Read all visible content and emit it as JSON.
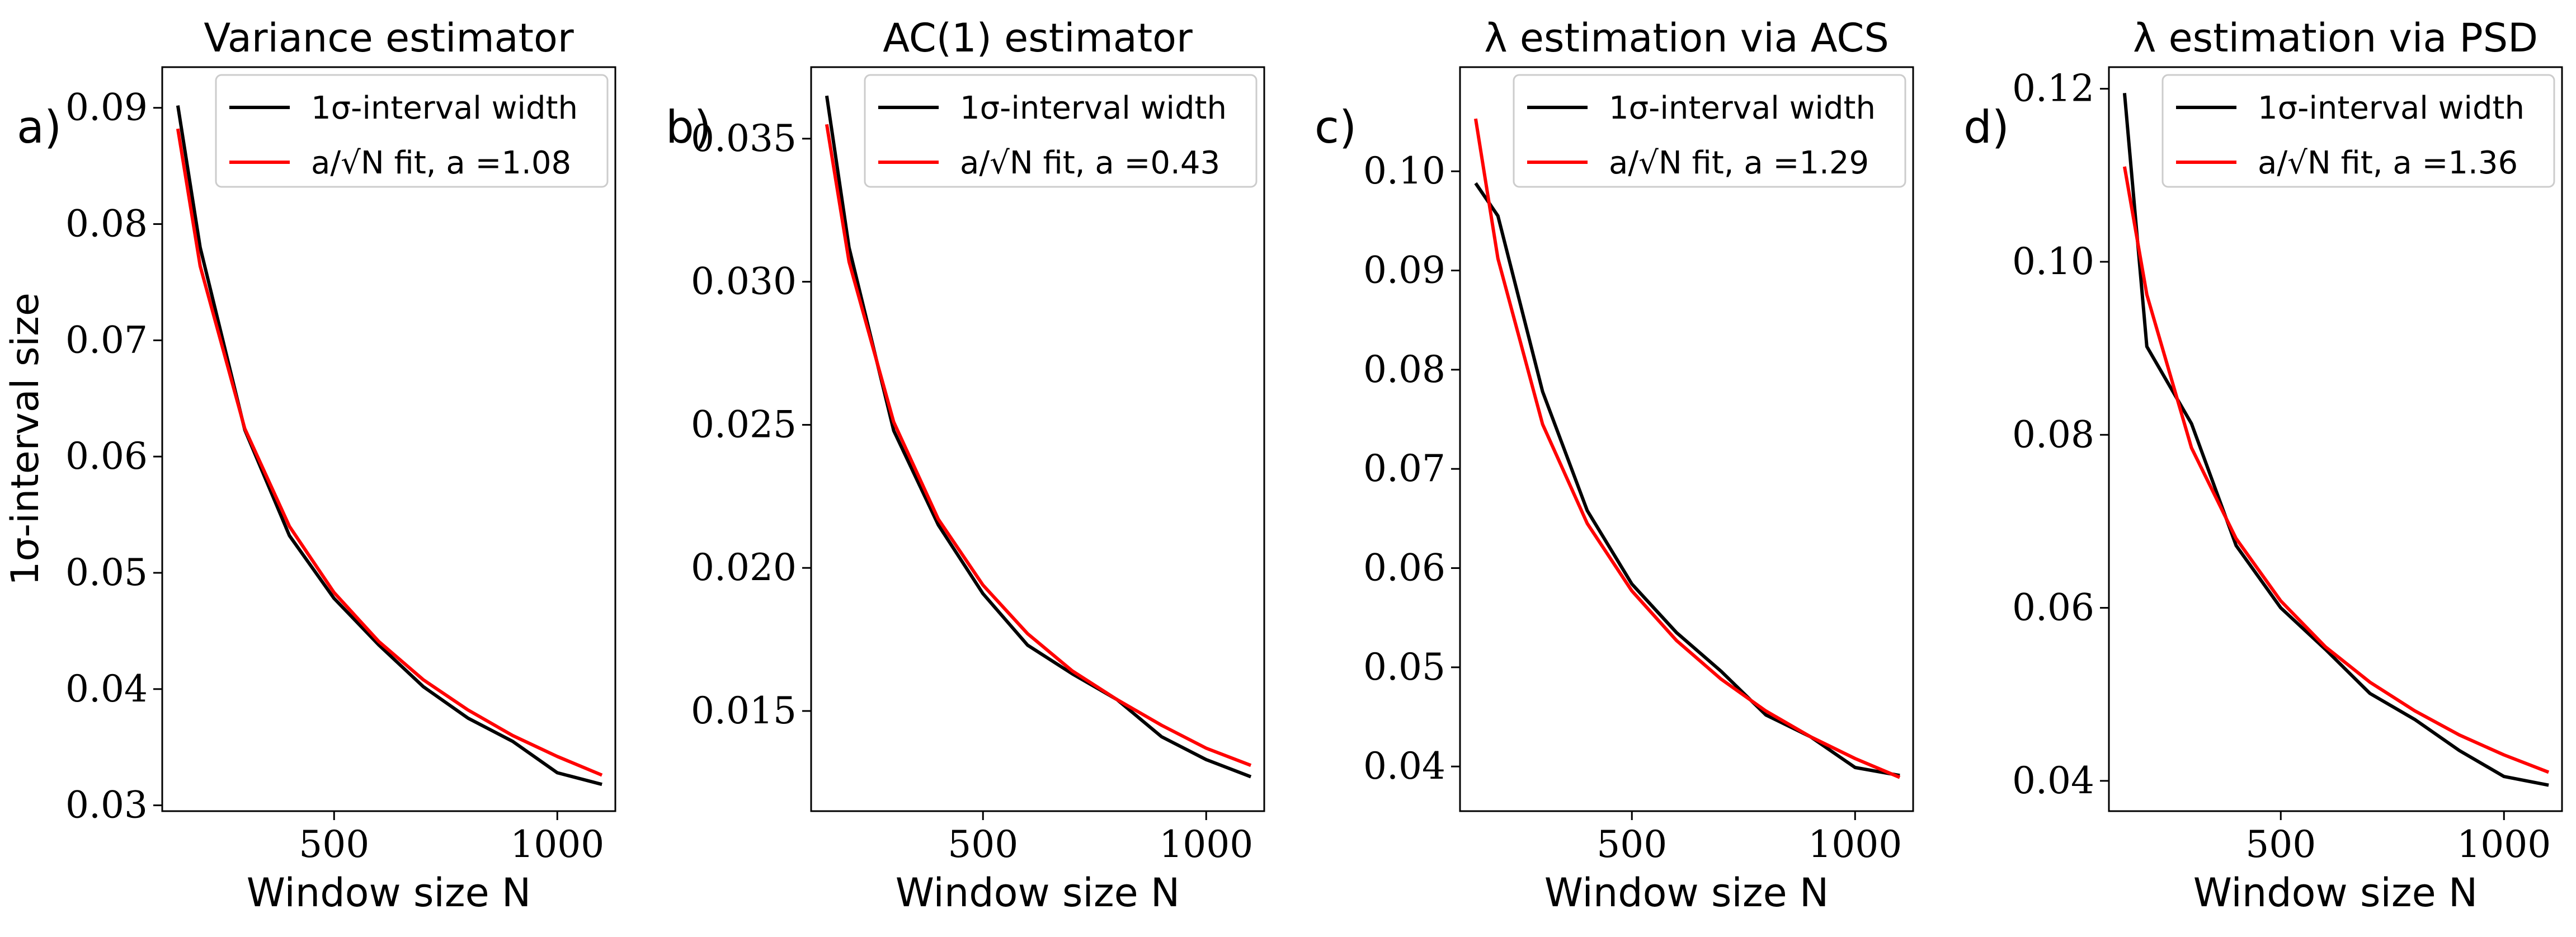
{
  "ylabel_shared": "1σ-interval size",
  "panels": [
    {
      "letter": "a)",
      "title": "Variance estimator"
    },
    {
      "letter": "b)",
      "title": "AC(1) estimator"
    },
    {
      "letter": "c)",
      "title": "λ estimation via ACS"
    },
    {
      "letter": "d)",
      "title": "λ estimation via PSD"
    }
  ],
  "colors": {
    "width_series": "#000000",
    "fit_series": "#ff0000",
    "axes": "#000000",
    "background": "#ffffff"
  },
  "chart_data": [
    {
      "type": "line",
      "title": "Variance estimator",
      "xlabel": "Window size N",
      "ylabel": "1σ-interval size",
      "xlim": [
        115,
        1130
      ],
      "ylim": [
        0.0295,
        0.0935
      ],
      "xticks": [
        500,
        1000
      ],
      "xtick_labels": [
        "500",
        "1000"
      ],
      "yticks": [
        0.03,
        0.04,
        0.05,
        0.06,
        0.07,
        0.08,
        0.09
      ],
      "ytick_labels": [
        "0.03",
        "0.04",
        "0.05",
        "0.06",
        "0.07",
        "0.08",
        "0.09"
      ],
      "grid": false,
      "legend_position": "top-right",
      "series": [
        {
          "name": "1σ-interval width",
          "x": [
            150,
            200,
            300,
            400,
            500,
            600,
            700,
            800,
            900,
            1000,
            1100
          ],
          "y": [
            0.0902,
            0.078,
            0.0623,
            0.0532,
            0.0478,
            0.0438,
            0.0402,
            0.0375,
            0.0355,
            0.0328,
            0.0318
          ]
        },
        {
          "name": "a/√N fit, a =1.08",
          "x": [
            150,
            200,
            300,
            400,
            500,
            600,
            700,
            800,
            900,
            1000,
            1100
          ],
          "y": [
            0.0882,
            0.0764,
            0.0624,
            0.054,
            0.0483,
            0.0441,
            0.0408,
            0.0382,
            0.036,
            0.0342,
            0.0326
          ]
        }
      ]
    },
    {
      "type": "line",
      "title": "AC(1) estimator",
      "xlabel": "Window size N",
      "ylabel": "",
      "xlim": [
        115,
        1130
      ],
      "ylim": [
        0.0115,
        0.0375
      ],
      "xticks": [
        500,
        1000
      ],
      "xtick_labels": [
        "500",
        "1000"
      ],
      "yticks": [
        0.015,
        0.02,
        0.025,
        0.03,
        0.035
      ],
      "ytick_labels": [
        "0.015",
        "0.020",
        "0.025",
        "0.030",
        "0.035"
      ],
      "grid": false,
      "legend_position": "top-right",
      "series": [
        {
          "name": "1σ-interval width",
          "x": [
            150,
            200,
            300,
            400,
            500,
            600,
            700,
            800,
            900,
            1000,
            1100
          ],
          "y": [
            0.0365,
            0.0312,
            0.0248,
            0.0215,
            0.0191,
            0.0173,
            0.0163,
            0.0154,
            0.0141,
            0.0133,
            0.0127
          ]
        },
        {
          "name": "a/√N fit, a =0.43",
          "x": [
            150,
            200,
            300,
            400,
            500,
            600,
            700,
            800,
            900,
            1000,
            1100
          ],
          "y": [
            0.0355,
            0.0307,
            0.0251,
            0.0217,
            0.0194,
            0.0177,
            0.0164,
            0.0154,
            0.0145,
            0.0137,
            0.0131
          ]
        }
      ]
    },
    {
      "type": "line",
      "title": "λ estimation via ACS",
      "xlabel": "Window size N",
      "ylabel": "",
      "xlim": [
        115,
        1130
      ],
      "ylim": [
        0.0355,
        0.1105
      ],
      "xticks": [
        500,
        1000
      ],
      "xtick_labels": [
        "500",
        "1000"
      ],
      "yticks": [
        0.04,
        0.05,
        0.06,
        0.07,
        0.08,
        0.09,
        0.1
      ],
      "ytick_labels": [
        "0.04",
        "0.05",
        "0.06",
        "0.07",
        "0.08",
        "0.09",
        "0.10"
      ],
      "grid": false,
      "legend_position": "top-right",
      "series": [
        {
          "name": "1σ-interval width",
          "x": [
            150,
            200,
            300,
            400,
            500,
            600,
            700,
            800,
            900,
            1000,
            1100
          ],
          "y": [
            0.0988,
            0.0955,
            0.0778,
            0.0658,
            0.0584,
            0.0535,
            0.0496,
            0.0452,
            0.043,
            0.0399,
            0.0391
          ]
        },
        {
          "name": "a/√N fit, a =1.29",
          "x": [
            150,
            200,
            300,
            400,
            500,
            600,
            700,
            800,
            900,
            1000,
            1100
          ],
          "y": [
            0.1053,
            0.0912,
            0.0745,
            0.0645,
            0.0577,
            0.0527,
            0.0488,
            0.0456,
            0.043,
            0.0408,
            0.0389
          ]
        }
      ]
    },
    {
      "type": "line",
      "title": "λ estimation via PSD",
      "xlabel": "Window size N",
      "ylabel": "",
      "xlim": [
        115,
        1130
      ],
      "ylim": [
        0.0365,
        0.1225
      ],
      "xticks": [
        500,
        1000
      ],
      "xtick_labels": [
        "500",
        "1000"
      ],
      "yticks": [
        0.04,
        0.06,
        0.08,
        0.1,
        0.12
      ],
      "ytick_labels": [
        "0.04",
        "0.06",
        "0.08",
        "0.10",
        "0.12"
      ],
      "grid": false,
      "legend_position": "top-right",
      "series": [
        {
          "name": "1σ-interval width",
          "x": [
            150,
            200,
            300,
            400,
            500,
            600,
            700,
            800,
            900,
            1000,
            1100
          ],
          "y": [
            0.1195,
            0.0902,
            0.0813,
            0.0672,
            0.06,
            0.0552,
            0.0501,
            0.0471,
            0.0435,
            0.0405,
            0.0395
          ]
        },
        {
          "name": "a/√N fit, a =1.36",
          "x": [
            150,
            200,
            300,
            400,
            500,
            600,
            700,
            800,
            900,
            1000,
            1100
          ],
          "y": [
            0.111,
            0.0962,
            0.0785,
            0.068,
            0.0608,
            0.0555,
            0.0514,
            0.0481,
            0.0453,
            0.043,
            0.041
          ]
        }
      ]
    }
  ]
}
